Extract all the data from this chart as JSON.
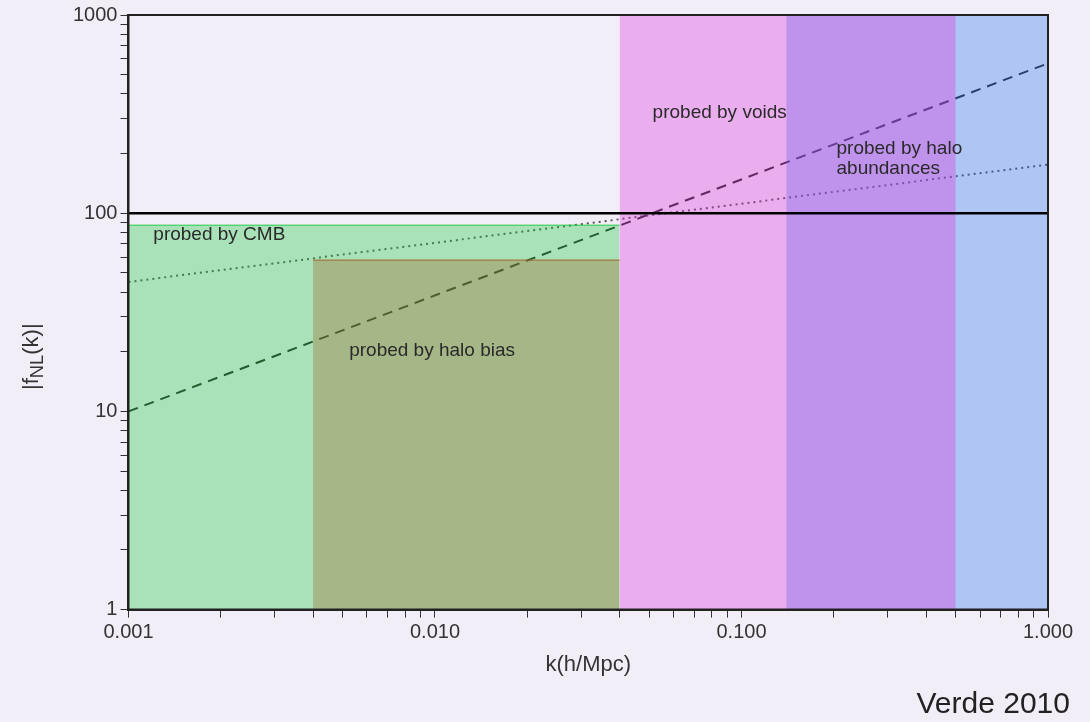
{
  "chart_data": {
    "type": "area",
    "xlabel": "k(h/Mpc)",
    "ylabel": "|f$_{NL}$(k)|",
    "log": "xy",
    "grid": false,
    "legend": false,
    "xlim": [
      0.001,
      1.0
    ],
    "xticks": [
      {
        "value": 0.001,
        "label": "0.001"
      },
      {
        "value": 0.002,
        "label": null
      },
      {
        "value": 0.003,
        "label": null
      },
      {
        "value": 0.004,
        "label": null
      },
      {
        "value": 0.005,
        "label": null
      },
      {
        "value": 0.006,
        "label": null
      },
      {
        "value": 0.007,
        "label": null
      },
      {
        "value": 0.008,
        "label": null
      },
      {
        "value": 0.009,
        "label": null
      },
      {
        "value": 0.01,
        "label": "0.010"
      },
      {
        "value": 0.02,
        "label": null
      },
      {
        "value": 0.03,
        "label": null
      },
      {
        "value": 0.04,
        "label": null
      },
      {
        "value": 0.05,
        "label": null
      },
      {
        "value": 0.06,
        "label": null
      },
      {
        "value": 0.07,
        "label": null
      },
      {
        "value": 0.08,
        "label": null
      },
      {
        "value": 0.09,
        "label": null
      },
      {
        "value": 0.1,
        "label": "0.100"
      },
      {
        "value": 0.2,
        "label": null
      },
      {
        "value": 0.3,
        "label": null
      },
      {
        "value": 0.4,
        "label": null
      },
      {
        "value": 0.5,
        "label": null
      },
      {
        "value": 0.6,
        "label": null
      },
      {
        "value": 0.7,
        "label": null
      },
      {
        "value": 0.8,
        "label": null
      },
      {
        "value": 0.9,
        "label": null
      },
      {
        "value": 1.0,
        "label": "1.000"
      }
    ],
    "ylim": [
      1,
      1000
    ],
    "yticks": [
      1,
      {
        "value": 2,
        "label": null
      },
      {
        "value": 3,
        "label": null
      },
      {
        "value": 4,
        "label": null
      },
      {
        "value": 5,
        "label": null
      },
      {
        "value": 6,
        "label": null
      },
      {
        "value": 7,
        "label": null
      },
      {
        "value": 8,
        "label": null
      },
      {
        "value": 9,
        "label": null
      },
      10,
      {
        "value": 20,
        "label": null
      },
      {
        "value": 30,
        "label": null
      },
      {
        "value": 40,
        "label": null
      },
      {
        "value": 50,
        "label": null
      },
      {
        "value": 60,
        "label": null
      },
      {
        "value": 70,
        "label": null
      },
      {
        "value": 80,
        "label": null
      },
      {
        "value": 90,
        "label": null
      },
      100,
      {
        "value": 200,
        "label": null
      },
      {
        "value": 300,
        "label": null
      },
      {
        "value": 400,
        "label": null
      },
      {
        "value": 500,
        "label": null
      },
      {
        "value": 600,
        "label": null
      },
      {
        "value": 700,
        "label": null
      },
      {
        "value": 800,
        "label": null
      },
      {
        "value": 900,
        "label": null
      },
      1000
    ],
    "series": [
      {
        "type": "area",
        "color": "#22cc44",
        "x": [
          0.001,
          0.04
        ],
        "values": [
          87,
          87
        ]
      },
      {
        "type": "area",
        "color": "#e0301e",
        "x": [
          0.004,
          0.04
        ],
        "values": [
          58,
          58
        ]
      },
      {
        "type": "area",
        "color": "#dd33dd",
        "x": [
          0.04,
          0.5
        ],
        "values": [
          1000,
          1000
        ]
      },
      {
        "type": "area",
        "color": "#3377ee",
        "x": [
          0.14,
          1.0
        ],
        "values": [
          1000,
          1000
        ]
      },
      {
        "type": "line",
        "color": "#222222",
        "line_style": "dashed",
        "x": [
          0.001,
          1.0
        ],
        "values": [
          10,
          570
        ]
      },
      {
        "type": "line",
        "color": "#555555",
        "line_style": "dotted",
        "x": [
          0.001,
          1.0
        ],
        "values": [
          45,
          176
        ]
      }
    ],
    "ref_lines": [
      {
        "axis": "y",
        "value": 100,
        "color": "#000000",
        "line_style": "solid"
      }
    ],
    "annotations": [
      "probed by CMB",
      "probed by halo bias",
      "probed by voids",
      "probed by halo\nabundances",
      "Verde 2010"
    ]
  }
}
